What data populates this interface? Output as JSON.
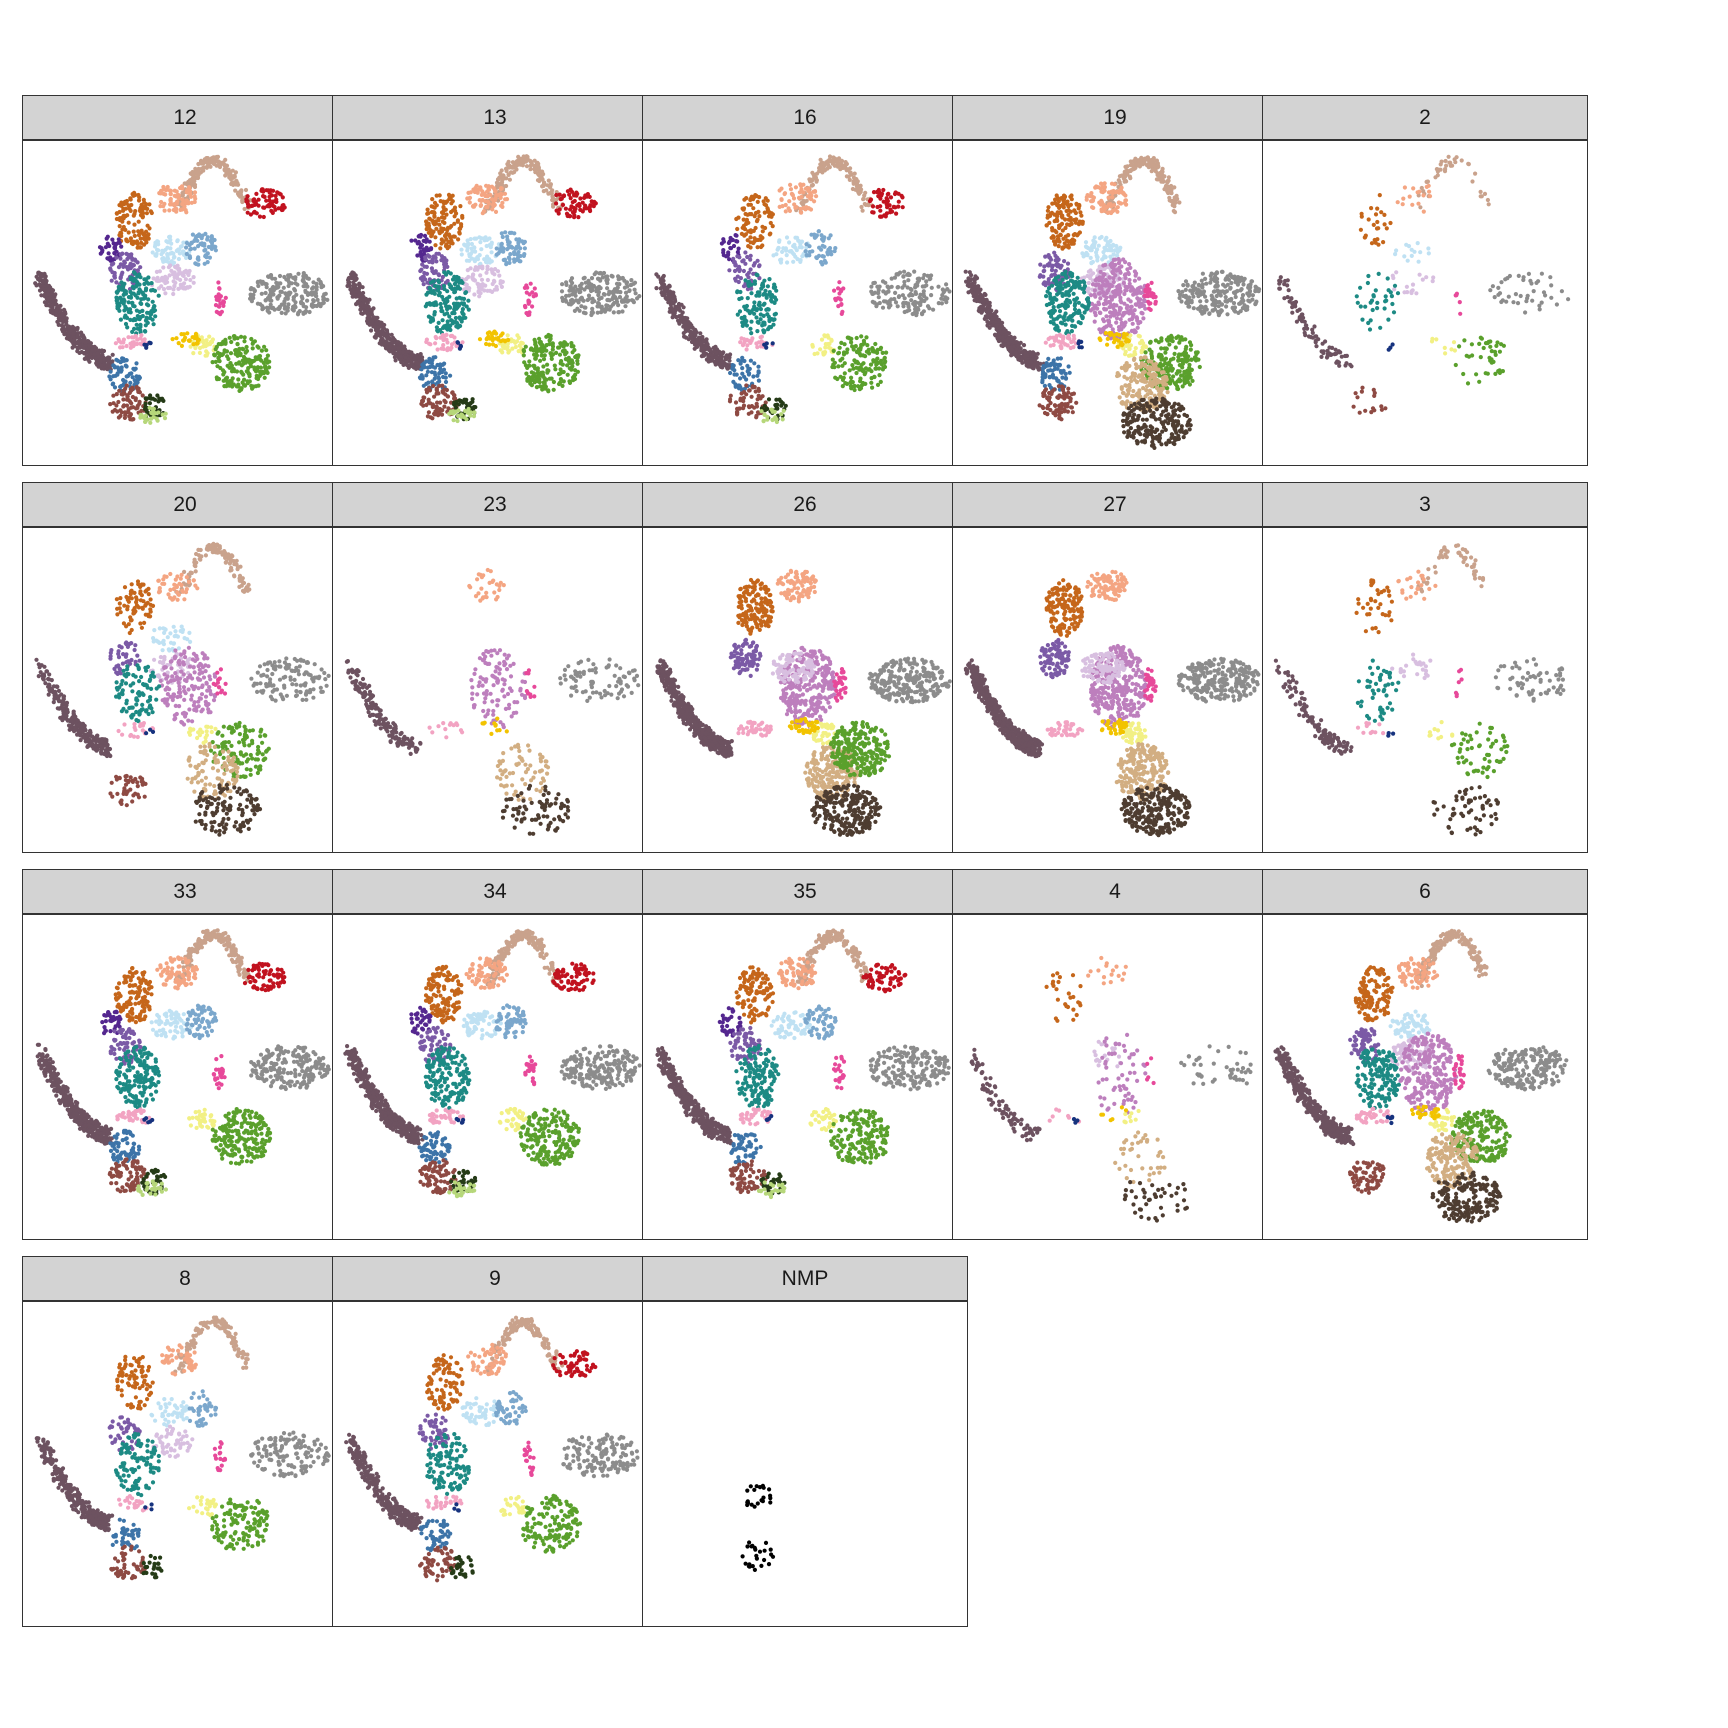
{
  "chart_data": {
    "type": "scatter",
    "facet_labels": [
      "12",
      "13",
      "16",
      "19",
      "2",
      "20",
      "23",
      "26",
      "27",
      "3",
      "33",
      "34",
      "35",
      "4",
      "6",
      "8",
      "9",
      "NMP"
    ],
    "grid_on": false,
    "axes_shown": false,
    "legend": "none",
    "xlim": [
      0,
      100
    ],
    "ylim": [
      0,
      100
    ],
    "clusters": [
      {
        "id": "arc-light",
        "color": "#c9a28c",
        "x": [
          48,
          70
        ],
        "y": [
          80,
          95
        ],
        "shape": "arc"
      },
      {
        "id": "arc-red",
        "color": "#c1121f",
        "x": [
          68,
          82
        ],
        "y": [
          77,
          86
        ]
      },
      {
        "id": "peach",
        "color": "#f4a582",
        "x": [
          41,
          54
        ],
        "y": [
          78,
          88
        ]
      },
      {
        "id": "orange-brown",
        "color": "#c5661a",
        "x": [
          28,
          40
        ],
        "y": [
          67,
          85
        ]
      },
      {
        "id": "purple-dark",
        "color": "#54278f",
        "x": [
          23,
          30
        ],
        "y": [
          63,
          72
        ]
      },
      {
        "id": "purple-mid",
        "color": "#7b5aa6",
        "x": [
          26,
          36
        ],
        "y": [
          54,
          66
        ]
      },
      {
        "id": "light-blue",
        "color": "#bfe1f3",
        "x": [
          39,
          52
        ],
        "y": [
          62,
          71
        ]
      },
      {
        "id": "steel-blue",
        "color": "#7ba7cc",
        "x": [
          50,
          60
        ],
        "y": [
          62,
          73
        ]
      },
      {
        "id": "lilac",
        "color": "#d8bfe0",
        "x": [
          39,
          53
        ],
        "y": [
          52,
          62
        ]
      },
      {
        "id": "teal",
        "color": "#1d8a84",
        "x": [
          28,
          42
        ],
        "y": [
          40,
          60
        ]
      },
      {
        "id": "hot-pink",
        "color": "#e7499a",
        "x": [
          59,
          63
        ],
        "y": [
          46,
          57
        ]
      },
      {
        "id": "mauve-brown",
        "color": "#6d5260",
        "x": [
          4,
          26
        ],
        "y": [
          25,
          58
        ],
        "shape": "arc"
      },
      {
        "id": "gray",
        "color": "#8c8c8c",
        "x": [
          70,
          96
        ],
        "y": [
          46,
          60
        ]
      },
      {
        "id": "pale-pink",
        "color": "#f2a3c2",
        "x": [
          28,
          40
        ],
        "y": [
          35,
          40
        ]
      },
      {
        "id": "yellow",
        "color": "#f2f084",
        "x": [
          51,
          60
        ],
        "y": [
          33,
          40
        ]
      },
      {
        "id": "green",
        "color": "#5aa02c",
        "x": [
          58,
          77
        ],
        "y": [
          22,
          40
        ]
      },
      {
        "id": "blue-mid",
        "color": "#3d74a8",
        "x": [
          26,
          36
        ],
        "y": [
          22,
          33
        ]
      },
      {
        "id": "red-brown",
        "color": "#8e4a43",
        "x": [
          26,
          38
        ],
        "y": [
          13,
          24
        ]
      },
      {
        "id": "dark-green",
        "color": "#253b17",
        "x": [
          36,
          44
        ],
        "y": [
          13,
          21
        ]
      },
      {
        "id": "yellow-green",
        "color": "#b6d77a",
        "x": [
          35,
          44
        ],
        "y": [
          12,
          17
        ]
      },
      {
        "id": "tan",
        "color": "#d2ae82",
        "x": [
          50,
          67
        ],
        "y": [
          15,
          33
        ]
      },
      {
        "id": "dark-brown",
        "color": "#4e3d31",
        "x": [
          52,
          74
        ],
        "y": [
          4,
          20
        ]
      },
      {
        "id": "orchid",
        "color": "#bd7fbd",
        "x": [
          42,
          60
        ],
        "y": [
          38,
          64
        ]
      },
      {
        "id": "gold",
        "color": "#f2c300",
        "x": [
          45,
          55
        ],
        "y": [
          36,
          41
        ]
      },
      {
        "id": "navy",
        "color": "#16327e",
        "x": [
          37,
          40
        ],
        "y": [
          35,
          38
        ]
      }
    ],
    "panels": [
      {
        "label": "12",
        "present": [
          "arc-light",
          "arc-red",
          "peach",
          "orange-brown",
          "purple-dark",
          "purple-mid",
          "light-blue",
          "steel-blue",
          "lilac",
          "teal",
          "hot-pink",
          "mauve-brown",
          "gray",
          "pale-pink",
          "yellow",
          "green",
          "blue-mid",
          "red-brown",
          "dark-green",
          "yellow-green",
          "gold",
          "navy"
        ],
        "density": 1.0
      },
      {
        "label": "13",
        "present": [
          "arc-light",
          "arc-red",
          "peach",
          "orange-brown",
          "purple-dark",
          "purple-mid",
          "light-blue",
          "steel-blue",
          "lilac",
          "teal",
          "hot-pink",
          "mauve-brown",
          "gray",
          "pale-pink",
          "yellow",
          "green",
          "blue-mid",
          "red-brown",
          "dark-green",
          "yellow-green",
          "gold",
          "navy"
        ],
        "density": 1.0
      },
      {
        "label": "16",
        "present": [
          "arc-light",
          "arc-red",
          "peach",
          "orange-brown",
          "purple-dark",
          "purple-mid",
          "light-blue",
          "steel-blue",
          "teal",
          "hot-pink",
          "mauve-brown",
          "gray",
          "pale-pink",
          "yellow",
          "green",
          "blue-mid",
          "red-brown",
          "dark-green",
          "yellow-green",
          "navy"
        ],
        "density": 0.75
      },
      {
        "label": "19",
        "present": [
          "arc-light",
          "peach",
          "orange-brown",
          "purple-mid",
          "light-blue",
          "lilac",
          "orchid",
          "teal",
          "hot-pink",
          "mauve-brown",
          "gray",
          "pale-pink",
          "yellow",
          "green",
          "blue-mid",
          "red-brown",
          "tan",
          "dark-brown",
          "gold",
          "navy"
        ],
        "density": 1.1
      },
      {
        "label": "2",
        "present": [
          "arc-light",
          "peach",
          "orange-brown",
          "light-blue",
          "lilac",
          "teal",
          "hot-pink",
          "mauve-brown",
          "gray",
          "yellow",
          "green",
          "red-brown",
          "navy"
        ],
        "density": 0.22
      },
      {
        "label": "20",
        "present": [
          "arc-light",
          "peach",
          "orange-brown",
          "purple-mid",
          "light-blue",
          "lilac",
          "orchid",
          "teal",
          "hot-pink",
          "mauve-brown",
          "gray",
          "pale-pink",
          "yellow",
          "green",
          "red-brown",
          "tan",
          "dark-brown",
          "navy"
        ],
        "density": 0.6
      },
      {
        "label": "23",
        "present": [
          "peach",
          "orchid",
          "hot-pink",
          "mauve-brown",
          "gray",
          "pale-pink",
          "tan",
          "dark-brown",
          "gold"
        ],
        "density": 0.4
      },
      {
        "label": "26",
        "present": [
          "peach",
          "orange-brown",
          "purple-mid",
          "orchid",
          "lilac",
          "hot-pink",
          "mauve-brown",
          "gray",
          "pale-pink",
          "yellow",
          "tan",
          "dark-brown",
          "gold",
          "green"
        ],
        "density": 1.2
      },
      {
        "label": "27",
        "present": [
          "peach",
          "orange-brown",
          "purple-mid",
          "orchid",
          "lilac",
          "hot-pink",
          "mauve-brown",
          "gray",
          "pale-pink",
          "yellow",
          "tan",
          "dark-brown",
          "gold"
        ],
        "density": 1.2
      },
      {
        "label": "3",
        "present": [
          "arc-light",
          "peach",
          "orange-brown",
          "lilac",
          "teal",
          "hot-pink",
          "mauve-brown",
          "gray",
          "pale-pink",
          "yellow",
          "green",
          "dark-brown",
          "navy"
        ],
        "density": 0.3
      },
      {
        "label": "33",
        "present": [
          "arc-light",
          "arc-red",
          "peach",
          "orange-brown",
          "purple-dark",
          "purple-mid",
          "light-blue",
          "steel-blue",
          "teal",
          "hot-pink",
          "mauve-brown",
          "gray",
          "pale-pink",
          "yellow",
          "green",
          "blue-mid",
          "red-brown",
          "dark-green",
          "yellow-green",
          "navy"
        ],
        "density": 1.0
      },
      {
        "label": "34",
        "present": [
          "arc-light",
          "arc-red",
          "peach",
          "orange-brown",
          "purple-dark",
          "purple-mid",
          "light-blue",
          "steel-blue",
          "teal",
          "hot-pink",
          "mauve-brown",
          "gray",
          "pale-pink",
          "yellow",
          "green",
          "blue-mid",
          "red-brown",
          "dark-green",
          "yellow-green",
          "navy"
        ],
        "density": 1.0
      },
      {
        "label": "35",
        "present": [
          "arc-light",
          "arc-red",
          "peach",
          "orange-brown",
          "purple-dark",
          "purple-mid",
          "light-blue",
          "steel-blue",
          "teal",
          "hot-pink",
          "mauve-brown",
          "gray",
          "pale-pink",
          "yellow",
          "green",
          "blue-mid",
          "red-brown",
          "dark-green",
          "yellow-green",
          "navy"
        ],
        "density": 0.9
      },
      {
        "label": "4",
        "present": [
          "peach",
          "orange-brown",
          "lilac",
          "orchid",
          "hot-pink",
          "mauve-brown",
          "gray",
          "pale-pink",
          "yellow",
          "tan",
          "dark-brown",
          "gold",
          "navy"
        ],
        "density": 0.22
      },
      {
        "label": "6",
        "present": [
          "arc-light",
          "peach",
          "orange-brown",
          "purple-mid",
          "light-blue",
          "lilac",
          "orchid",
          "teal",
          "hot-pink",
          "mauve-brown",
          "gray",
          "pale-pink",
          "yellow",
          "green",
          "red-brown",
          "tan",
          "dark-brown",
          "gold",
          "navy"
        ],
        "density": 0.95
      },
      {
        "label": "8",
        "present": [
          "arc-light",
          "peach",
          "orange-brown",
          "purple-mid",
          "light-blue",
          "steel-blue",
          "lilac",
          "teal",
          "hot-pink",
          "mauve-brown",
          "gray",
          "pale-pink",
          "yellow",
          "green",
          "blue-mid",
          "red-brown",
          "dark-green",
          "navy"
        ],
        "density": 0.65
      },
      {
        "label": "9",
        "present": [
          "arc-light",
          "arc-red",
          "peach",
          "orange-brown",
          "purple-mid",
          "light-blue",
          "steel-blue",
          "teal",
          "hot-pink",
          "mauve-brown",
          "gray",
          "pale-pink",
          "yellow",
          "green",
          "blue-mid",
          "red-brown",
          "dark-green",
          "navy"
        ],
        "density": 0.75
      },
      {
        "label": "NMP",
        "present": [
          "nmp-black"
        ],
        "density": 1.0,
        "nmp_points": {
          "color": "#000000",
          "x": [
            30,
            40
          ],
          "y": [
            18,
            48
          ]
        }
      }
    ]
  }
}
